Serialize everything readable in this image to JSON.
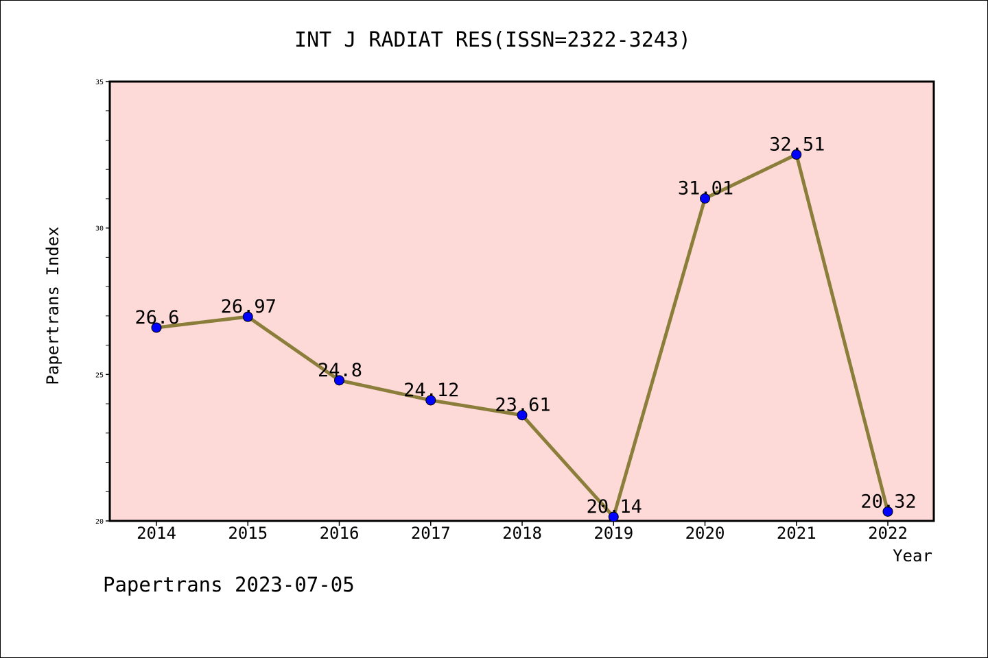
{
  "colors": {
    "plot_background": "#FDDAD7",
    "line": "#8B7D3A",
    "marker": "#0000FF"
  },
  "chart_data": {
    "type": "line",
    "title": "INT J RADIAT RES(ISSN=2322-3243)",
    "xlabel": "Year",
    "ylabel": "Papertrans Index",
    "ylim": [
      20,
      35
    ],
    "yticks": [
      "20",
      "25",
      "30",
      "35"
    ],
    "categories": [
      "2014",
      "2015",
      "2016",
      "2017",
      "2018",
      "2019",
      "2020",
      "2021",
      "2022"
    ],
    "values": [
      26.6,
      26.97,
      24.8,
      24.12,
      23.61,
      20.14,
      31.01,
      32.51,
      20.32
    ],
    "data_labels": [
      "26.6",
      "26.97",
      "24.8",
      "24.12",
      "23.61",
      "20.14",
      "31.01",
      "32.51",
      "20.32"
    ],
    "grid": false,
    "legend": "none"
  },
  "footer": "Papertrans 2023-07-05"
}
